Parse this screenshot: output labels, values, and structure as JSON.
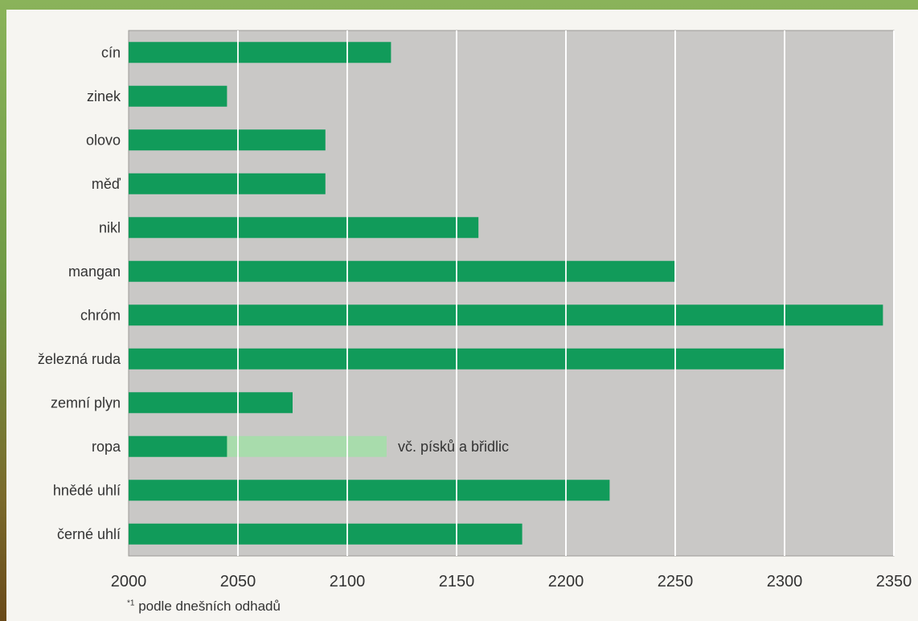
{
  "chart_data": {
    "type": "bar",
    "orientation": "horizontal",
    "title": "",
    "xlabel": "",
    "ylabel": "",
    "xlim": [
      2000,
      2350
    ],
    "xticks": [
      2000,
      2050,
      2100,
      2150,
      2200,
      2250,
      2300,
      2350
    ],
    "grid": true,
    "categories": [
      "cín",
      "zinek",
      "olovo",
      "měď",
      "nikl",
      "mangan",
      "chróm",
      "železná ruda",
      "zemní plyn",
      "ropa",
      "hnědé uhlí",
      "černé uhlí"
    ],
    "series": [
      {
        "values": [
          2120,
          2045,
          2090,
          2090,
          2160,
          2250,
          2345,
          2300,
          2075,
          2045,
          2220,
          2180
        ],
        "color": "#119b5a"
      },
      {
        "values": [
          null,
          null,
          null,
          null,
          null,
          null,
          null,
          null,
          null,
          2118,
          null,
          null
        ],
        "color": "#a8dcac"
      }
    ],
    "annotations": [
      {
        "category": "ropa",
        "text": "vč. písků a břidlic"
      }
    ],
    "footnote_marker": "*1",
    "footnote": "podle dnešních odhadů"
  },
  "colors": {
    "plot_bg": "#c9c8c6",
    "bar": "#119b5a",
    "bar_extension": "#a8dcac",
    "grid": "#ffffff"
  }
}
